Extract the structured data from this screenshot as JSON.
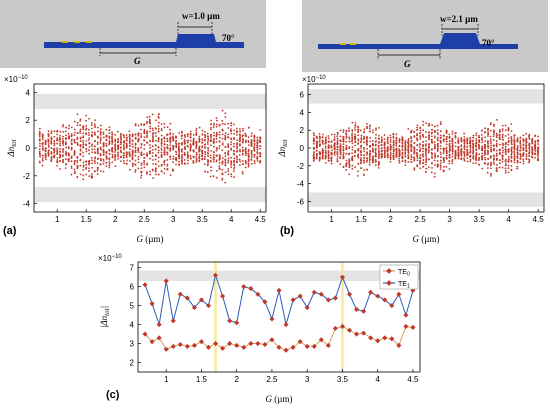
{
  "colors": {
    "diagram_bg": "#c9c9c9",
    "waveguide": "#1f3fa8",
    "feature": "#d4b800",
    "band": "#e3e3e3",
    "scatter": "#c0392b",
    "te0_line": "#d9a05b",
    "te1_line": "#2e5bb8",
    "marker": "#c0392b",
    "highlight": "#f5eaa0"
  },
  "diagrams": [
    {
      "width_label": "w=1.0 µm",
      "angle_label": "70°",
      "gap_label": "G"
    },
    {
      "width_label": "w=2.1 µm",
      "angle_label": "70°",
      "gap_label": "G"
    }
  ],
  "panels": [
    {
      "label": "(a)",
      "exponent": "×10",
      "exponent_power": "−10",
      "ylabel": "Δn",
      "ylabel_sub": "tot",
      "xlabel": "G",
      "xlabel_unit": "(µm)"
    },
    {
      "label": "(b)",
      "exponent": "×10",
      "exponent_power": "−10",
      "ylabel": "Δn",
      "ylabel_sub": "tot",
      "xlabel": "G",
      "xlabel_unit": "(µm)"
    },
    {
      "label": "(c)",
      "exponent": "×10",
      "exponent_power": "−10",
      "ylabel": "|Δn",
      "ylabel_sub": "tot",
      "ylabel_end": "|",
      "xlabel": "G",
      "xlabel_unit": "(µm)",
      "legend": [
        {
          "name": "TE",
          "sub": "0"
        },
        {
          "name": "TE",
          "sub": "1"
        }
      ]
    }
  ],
  "chart_data": [
    {
      "type": "scatter",
      "title": "",
      "xlabel": "G (µm)",
      "ylabel": "Δn_tot (×10^-10)",
      "xlim": [
        0.6,
        4.6
      ],
      "ylim": [
        -4.6,
        4.6
      ],
      "xticks": [
        1.0,
        1.5,
        2.0,
        2.5,
        3.0,
        3.5,
        4.0,
        4.5
      ],
      "yticks": [
        -4,
        -2,
        0,
        2,
        4
      ],
      "bands": [
        [
          2.8,
          3.9
        ],
        [
          -3.9,
          -2.8
        ]
      ],
      "x_range": [
        0.7,
        4.5
      ],
      "x_step": 0.05,
      "spread": 2.8,
      "points_per_column": 22,
      "grid": false
    },
    {
      "type": "scatter",
      "title": "",
      "xlabel": "G (µm)",
      "ylabel": "Δn_tot (×10^-10)",
      "xlim": [
        0.6,
        4.6
      ],
      "ylim": [
        -7.2,
        7.2
      ],
      "xticks": [
        1.0,
        1.5,
        2.0,
        2.5,
        3.0,
        3.5,
        4.0,
        4.5
      ],
      "yticks": [
        -6,
        -4,
        -2,
        0,
        2,
        4,
        6
      ],
      "bands": [
        [
          5.0,
          6.6
        ],
        [
          -6.6,
          -5.0
        ]
      ],
      "x_range": [
        0.7,
        4.5
      ],
      "x_step": 0.05,
      "spread": 3.5,
      "points_per_column": 24,
      "grid": false
    },
    {
      "type": "line",
      "title": "",
      "xlabel": "G (µm)",
      "ylabel": "|Δn_tot| (×10^-10)",
      "xlim": [
        0.6,
        4.6
      ],
      "ylim": [
        1.5,
        7.3
      ],
      "xticks": [
        1.0,
        1.5,
        2.0,
        2.5,
        3.0,
        3.5,
        4.0,
        4.5
      ],
      "yticks": [
        2,
        3,
        4,
        5,
        6,
        7
      ],
      "band": [
        6.3,
        6.85
      ],
      "vlines": [
        1.7,
        3.5
      ],
      "x": [
        0.7,
        0.8,
        0.9,
        1.0,
        1.1,
        1.2,
        1.3,
        1.4,
        1.5,
        1.6,
        1.7,
        1.8,
        1.9,
        2.0,
        2.1,
        2.2,
        2.3,
        2.4,
        2.5,
        2.6,
        2.7,
        2.8,
        2.9,
        3.0,
        3.1,
        3.2,
        3.3,
        3.4,
        3.5,
        3.6,
        3.7,
        3.8,
        3.9,
        4.0,
        4.1,
        4.2,
        4.3,
        4.4,
        4.5
      ],
      "series": [
        {
          "name": "TE0",
          "values": [
            3.5,
            3.1,
            3.3,
            2.7,
            2.85,
            2.95,
            2.85,
            2.9,
            3.1,
            2.8,
            3.0,
            2.75,
            3.0,
            2.9,
            2.8,
            3.0,
            3.0,
            2.95,
            3.2,
            2.8,
            2.65,
            2.8,
            3.1,
            2.85,
            2.85,
            3.2,
            2.9,
            3.8,
            3.9,
            3.7,
            3.5,
            3.55,
            3.3,
            3.15,
            3.3,
            3.25,
            2.9,
            3.9,
            3.85
          ]
        },
        {
          "name": "TE1",
          "values": [
            6.1,
            5.1,
            4.0,
            6.3,
            4.2,
            5.6,
            5.4,
            4.9,
            5.3,
            5.0,
            6.6,
            5.5,
            4.2,
            4.1,
            6.0,
            5.9,
            5.6,
            5.2,
            4.3,
            5.8,
            4.0,
            5.3,
            5.5,
            4.9,
            5.7,
            5.6,
            5.3,
            5.4,
            6.5,
            5.6,
            4.8,
            4.7,
            5.7,
            5.5,
            5.3,
            5.0,
            5.6,
            4.5,
            5.8
          ]
        }
      ],
      "grid": false
    }
  ]
}
